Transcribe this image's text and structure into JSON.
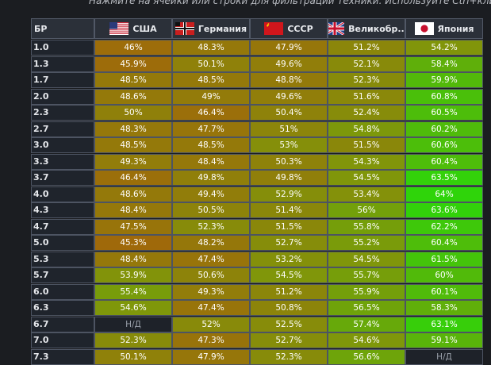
{
  "hint": "Нажмите на ячейки или строки для фильтрации техники. Используйте Ctrl+кли",
  "columns": [
    {
      "label": "БР",
      "flag_icon": ""
    },
    {
      "label": "США",
      "flag_icon": "usa-flag-icon"
    },
    {
      "label": "Германия",
      "flag_icon": "germany-flag-icon"
    },
    {
      "label": "СССР",
      "flag_icon": "ussr-flag-icon"
    },
    {
      "label": "Великобр...",
      "flag_icon": "uk-flag-icon"
    },
    {
      "label": "Япония",
      "flag_icon": "japan-flag-icon"
    }
  ],
  "rows": [
    {
      "br": "1.0",
      "values": [
        "46%",
        "48.3%",
        "47.9%",
        "51.2%",
        "54.2%"
      ]
    },
    {
      "br": "1.3",
      "values": [
        "45.9%",
        "50.1%",
        "49.6%",
        "52.1%",
        "58.4%"
      ]
    },
    {
      "br": "1.7",
      "values": [
        "48.5%",
        "48.5%",
        "48.8%",
        "52.3%",
        "59.9%"
      ]
    },
    {
      "br": "2.0",
      "values": [
        "48.6%",
        "49%",
        "49.6%",
        "51.6%",
        "60.8%"
      ]
    },
    {
      "br": "2.3",
      "values": [
        "50%",
        "46.4%",
        "50.4%",
        "52.4%",
        "60.5%"
      ]
    },
    {
      "br": "2.7",
      "values": [
        "48.3%",
        "47.7%",
        "51%",
        "54.8%",
        "60.2%"
      ]
    },
    {
      "br": "3.0",
      "values": [
        "48.5%",
        "48.5%",
        "53%",
        "51.5%",
        "60.6%"
      ]
    },
    {
      "br": "3.3",
      "values": [
        "49.3%",
        "48.4%",
        "50.3%",
        "54.3%",
        "60.4%"
      ]
    },
    {
      "br": "3.7",
      "values": [
        "46.4%",
        "49.8%",
        "49.8%",
        "54.5%",
        "63.5%"
      ]
    },
    {
      "br": "4.0",
      "values": [
        "48.6%",
        "49.4%",
        "52.9%",
        "53.4%",
        "64%"
      ]
    },
    {
      "br": "4.3",
      "values": [
        "48.4%",
        "50.5%",
        "51.4%",
        "56%",
        "63.6%"
      ]
    },
    {
      "br": "4.7",
      "values": [
        "47.5%",
        "52.3%",
        "51.5%",
        "55.8%",
        "62.2%"
      ]
    },
    {
      "br": "5.0",
      "values": [
        "45.3%",
        "48.2%",
        "52.7%",
        "55.2%",
        "60.4%"
      ]
    },
    {
      "br": "5.3",
      "values": [
        "48.4%",
        "47.4%",
        "53.2%",
        "54.5%",
        "61.5%"
      ]
    },
    {
      "br": "5.7",
      "values": [
        "53.9%",
        "50.6%",
        "54.5%",
        "55.7%",
        "60%"
      ]
    },
    {
      "br": "6.0",
      "values": [
        "55.4%",
        "49.3%",
        "51.2%",
        "55.9%",
        "60.1%"
      ]
    },
    {
      "br": "6.3",
      "values": [
        "54.6%",
        "47.4%",
        "50.8%",
        "56.5%",
        "58.3%"
      ]
    },
    {
      "br": "6.7",
      "values": [
        "Н/Д",
        "52%",
        "52.5%",
        "57.4%",
        "63.1%"
      ]
    },
    {
      "br": "7.0",
      "values": [
        "52.3%",
        "47.3%",
        "52.7%",
        "54.6%",
        "59.1%"
      ]
    },
    {
      "br": "7.3",
      "values": [
        "50.1%",
        "47.9%",
        "52.3%",
        "56.6%",
        "Н/Д"
      ]
    }
  ],
  "colors": {
    "low": "#a0680a",
    "high": "#2fd40a",
    "na": "#1e2229"
  }
}
